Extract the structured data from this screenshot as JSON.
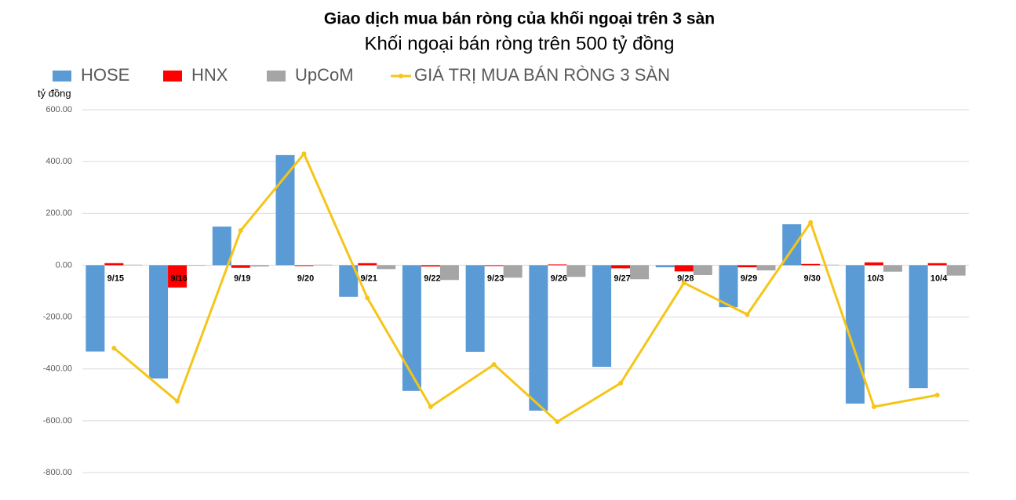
{
  "chart_data": {
    "type": "bar_line",
    "title": "Giao dịch mua bán ròng của khối ngoại trên 3 sàn",
    "subtitle": "Khối ngoại bán ròng trên 500 tỷ đồng",
    "y_label": "tỷ đồng",
    "categories": [
      "9/15",
      "9/16",
      "9/19",
      "9/20",
      "9/21",
      "9/22",
      "9/23",
      "9/26",
      "9/27",
      "9/28",
      "9/29",
      "9/30",
      "10/3",
      "10/4"
    ],
    "series": [
      {
        "name": "HOSE",
        "type": "bar",
        "color": "#5b9bd5",
        "values": [
          -333,
          -437,
          149,
          425,
          -122,
          -485,
          -334,
          -561,
          -392,
          -8,
          -162,
          158,
          -534,
          -474
        ]
      },
      {
        "name": "HNX",
        "type": "bar",
        "color": "#ff0000",
        "values": [
          8,
          -86,
          -10,
          -3,
          8,
          -5,
          -3,
          3,
          -12,
          -24,
          -8,
          5,
          11,
          8
        ]
      },
      {
        "name": "UpCoM",
        "type": "bar",
        "color": "#a5a5a5",
        "values": [
          2,
          -2,
          -5,
          2,
          -15,
          -57,
          -48,
          -45,
          -54,
          -38,
          -20,
          2,
          -25,
          -40
        ]
      },
      {
        "name": "GIÁ TRỊ MUA BÁN RÒNG 3 SÀN",
        "type": "line",
        "color": "#f5c518",
        "values": [
          -320,
          -525,
          134,
          430,
          -126,
          -546,
          -383,
          -604,
          -455,
          -68,
          -190,
          165,
          -546,
          -501
        ]
      }
    ],
    "ylim": [
      -800,
      600
    ],
    "yticks": [
      {
        "value": -800,
        "label": "-800.00"
      },
      {
        "value": -600,
        "label": "-600.00"
      },
      {
        "value": -400,
        "label": "-400.00"
      },
      {
        "value": -200,
        "label": "-200.00"
      },
      {
        "value": 0,
        "label": "0.00"
      },
      {
        "value": 200,
        "label": "200.00"
      },
      {
        "value": 400,
        "label": "400.00"
      },
      {
        "value": 600,
        "label": "600.00"
      }
    ],
    "grid": true
  }
}
